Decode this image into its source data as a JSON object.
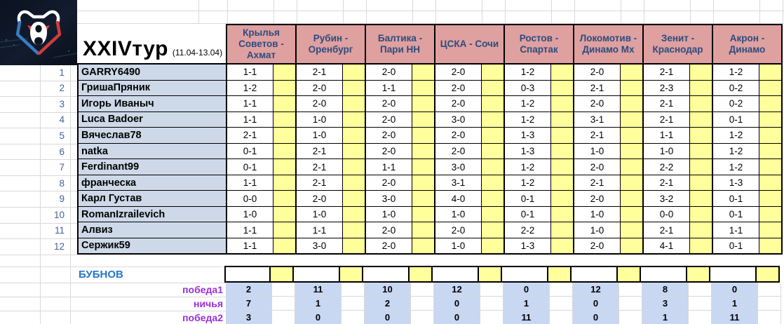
{
  "title": {
    "round": "XXIVтур",
    "dates": "(11.04-13.04)"
  },
  "logo": {
    "icon": "rpl-bear-logo"
  },
  "matches": [
    "Крылья Советов  - Ахмат",
    "Рубин - Оренбург",
    "Балтика - Пари НН",
    "ЦСКА - Сочи",
    "Ростов - Спартак",
    "Локомотив - Динамо Мх",
    "Зенит - Краснодар",
    "Акрон - Динамо"
  ],
  "players": [
    {
      "num": 1,
      "name": "GARRY6490",
      "predictions": [
        "1-1",
        "2-1",
        "2-0",
        "2-0",
        "1-2",
        "2-0",
        "2-1",
        "1-2"
      ]
    },
    {
      "num": 2,
      "name": "ГришаПряник",
      "predictions": [
        "1-2",
        "2-0",
        "1-1",
        "2-0",
        "0-3",
        "2-1",
        "2-3",
        "0-2"
      ]
    },
    {
      "num": 3,
      "name": "Игорь Иваныч",
      "predictions": [
        "1-1",
        "2-0",
        "2-0",
        "2-0",
        "1-2",
        "2-0",
        "2-1",
        "0-2"
      ]
    },
    {
      "num": 4,
      "name": "Luca Badoer",
      "predictions": [
        "1-1",
        "1-0",
        "2-0",
        "3-0",
        "1-2",
        "3-1",
        "2-1",
        "0-1"
      ]
    },
    {
      "num": 5,
      "name": "Вячеслав78",
      "predictions": [
        "2-1",
        "1-0",
        "2-0",
        "2-0",
        "1-3",
        "2-1",
        "1-1",
        "1-2"
      ]
    },
    {
      "num": 6,
      "name": "natka",
      "predictions": [
        "0-1",
        "2-1",
        "2-0",
        "2-0",
        "1-3",
        "1-0",
        "1-0",
        "1-2"
      ]
    },
    {
      "num": 7,
      "name": "Ferdinant99",
      "predictions": [
        "0-1",
        "2-1",
        "1-1",
        "3-0",
        "1-2",
        "2-0",
        "2-2",
        "1-2"
      ]
    },
    {
      "num": 8,
      "name": "франческа",
      "predictions": [
        "1-1",
        "2-1",
        "2-0",
        "3-1",
        "1-2",
        "2-1",
        "2-1",
        "1-3"
      ]
    },
    {
      "num": 9,
      "name": "Карл Густав",
      "predictions": [
        "0-0",
        "2-0",
        "3-0",
        "4-0",
        "0-1",
        "2-0",
        "3-2",
        "0-1"
      ]
    },
    {
      "num": 10,
      "name": "RomanIzrailevich",
      "predictions": [
        "1-0",
        "1-0",
        "1-0",
        "1-0",
        "0-1",
        "1-0",
        "0-0",
        "0-1"
      ]
    },
    {
      "num": 11,
      "name": "Алвиз",
      "predictions": [
        "1-1",
        "1-1",
        "2-0",
        "2-0",
        "2-2",
        "1-0",
        "2-1",
        "1-1"
      ]
    },
    {
      "num": 12,
      "name": "Сержик59",
      "predictions": [
        "1-1",
        "3-0",
        "2-0",
        "1-0",
        "1-3",
        "2-0",
        "4-1",
        "0-1"
      ]
    }
  ],
  "bubnov_label": "БУБНОВ",
  "stats": [
    {
      "label": "победа1",
      "values": [
        2,
        11,
        10,
        12,
        0,
        12,
        8,
        0
      ]
    },
    {
      "label": "ничья",
      "values": [
        7,
        1,
        2,
        0,
        1,
        0,
        3,
        1
      ]
    },
    {
      "label": "победа2",
      "values": [
        3,
        0,
        0,
        0,
        11,
        0,
        1,
        11
      ]
    }
  ],
  "colors": {
    "header_fill": "#dfa0a0",
    "header_text": "#2b4c7e",
    "name_fill": "#cdd9e8",
    "points_fill": "#ffff9c",
    "stats_fill": "#c8d7f2",
    "stats_label": "#9c2ed8",
    "bubnov_text": "#2376cc"
  }
}
